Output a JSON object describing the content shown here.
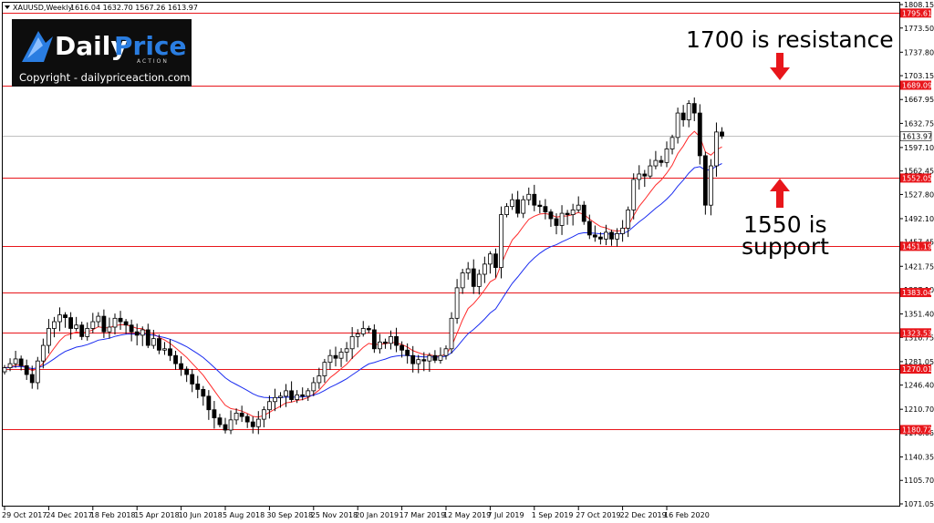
{
  "header": {
    "symbol": "XAUUSD,Weekly",
    "ohlc": "1616.04 1632.70 1567.26 1613.97"
  },
  "logo": {
    "brand_part1": "Daily",
    "brand_part2": "Price",
    "brand_sub": "ACTION",
    "copyright": "Copyright - dailypriceaction.com"
  },
  "annotations": {
    "resistance": "1700 is resistance",
    "support_line1": "1550 is",
    "support_line2": "support"
  },
  "colors": {
    "level_line": "#e8161b",
    "ma_fast": "#ff2a2a",
    "ma_slow": "#1a2cf0",
    "arrow": "#e8161b",
    "candle_up": "#ffffff",
    "candle_down": "#000000",
    "logo_bg": "#0d0d0d",
    "logo_accent": "#2a7de1"
  },
  "chart_data": {
    "type": "candlestick",
    "title": "XAUUSD,Weekly",
    "ylim": [
      1071.05,
      1808.15
    ],
    "y_ticks": [
      "1808.15",
      "1773.50",
      "1737.80",
      "1703.15",
      "1667.95",
      "1632.75",
      "1597.10",
      "1562.45",
      "1527.80",
      "1492.10",
      "1457.45",
      "1421.75",
      "1387.10",
      "1351.40",
      "1316.75",
      "1281.05",
      "1246.40",
      "1210.70",
      "1176.05",
      "1140.35",
      "1105.70",
      "1071.05"
    ],
    "x_tick_labels": [
      "29 Oct 2017",
      "24 Dec 2017",
      "18 Feb 2018",
      "15 Apr 2018",
      "10 Jun 2018",
      "5 Aug 2018",
      "30 Sep 2018",
      "25 Nov 2018",
      "20 Jan 2019",
      "17 Mar 2019",
      "12 May 2019",
      "7 Jul 2019",
      "1 Sep 2019",
      "27 Oct 2019",
      "22 Dec 2019",
      "16 Feb 2020"
    ],
    "current_price": "1613.97",
    "levels": [
      {
        "value": 1795.61,
        "label": "1795.61"
      },
      {
        "value": 1689.09,
        "label": "1689.09"
      },
      {
        "value": 1552.05,
        "label": "1552.05"
      },
      {
        "value": 1451.19,
        "label": "1451.19"
      },
      {
        "value": 1383.04,
        "label": "1383.04"
      },
      {
        "value": 1323.53,
        "label": "1323.53"
      },
      {
        "value": 1270.01,
        "label": "1270.01"
      },
      {
        "value": 1180.72,
        "label": "1180.72"
      }
    ],
    "moving_averages": [
      "fast (red)",
      "slow (blue)"
    ],
    "close_path": [
      1272,
      1278,
      1285,
      1275,
      1262,
      1250,
      1282,
      1305,
      1330,
      1340,
      1350,
      1346,
      1330,
      1335,
      1318,
      1330,
      1340,
      1348,
      1325,
      1332,
      1345,
      1340,
      1335,
      1325,
      1320,
      1328,
      1305,
      1315,
      1298,
      1300,
      1290,
      1278,
      1270,
      1262,
      1248,
      1240,
      1230,
      1210,
      1198,
      1188,
      1180,
      1195,
      1205,
      1200,
      1192,
      1185,
      1196,
      1210,
      1222,
      1228,
      1230,
      1238,
      1225,
      1232,
      1230,
      1238,
      1250,
      1260,
      1280,
      1290,
      1286,
      1295,
      1300,
      1318,
      1322,
      1330,
      1328,
      1300,
      1310,
      1308,
      1318,
      1305,
      1298,
      1290,
      1278,
      1284,
      1282,
      1290,
      1283,
      1290,
      1300,
      1345,
      1390,
      1412,
      1418,
      1392,
      1410,
      1425,
      1440,
      1420,
      1498,
      1510,
      1520,
      1500,
      1520,
      1528,
      1512,
      1510,
      1502,
      1492,
      1482,
      1500,
      1498,
      1505,
      1512,
      1488,
      1468,
      1465,
      1462,
      1472,
      1462,
      1470,
      1478,
      1505,
      1550,
      1558,
      1555,
      1570,
      1578,
      1575,
      1595,
      1612,
      1648,
      1638,
      1662,
      1648,
      1585,
      1512,
      1570,
      1620,
      1614
    ]
  }
}
